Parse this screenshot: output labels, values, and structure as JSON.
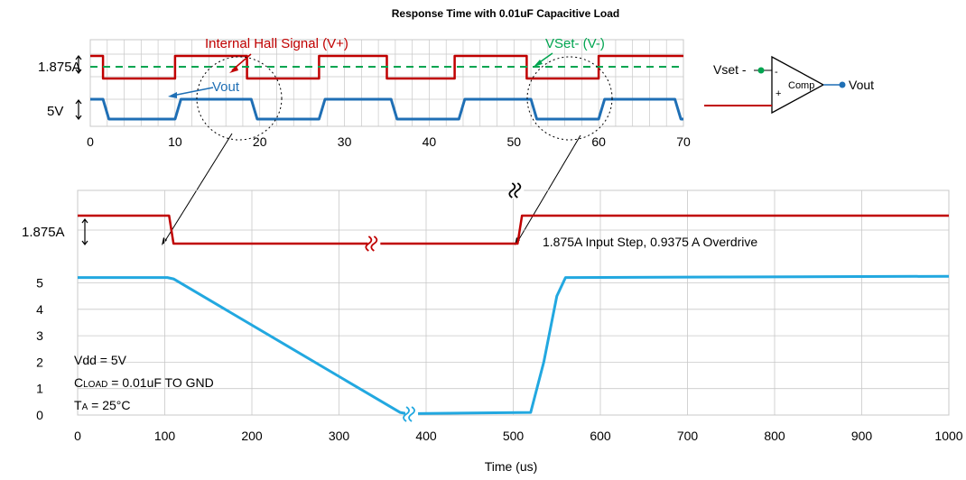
{
  "title": "Response  Time with 0.01uF Capacitive Load",
  "colors": {
    "hall": "#c00000",
    "vout_top": "#1f6fb5",
    "vout_bottom": "#22a8e0",
    "vset": "#00a550",
    "grid": "#c8c8c8"
  },
  "chart_data": [
    {
      "type": "line",
      "xlim": [
        0,
        70
      ],
      "x_ticks": [
        "0",
        "10",
        "20",
        "30",
        "40",
        "50",
        "60",
        "70"
      ],
      "y_tick_labels": [
        "1.875A",
        "5V"
      ],
      "grid": true,
      "series": [
        {
          "name": "Internal Hall Signal (V+)",
          "x": [
            0,
            1.5,
            1.5,
            10,
            10,
            18.5,
            18.5,
            27,
            27,
            35,
            35,
            43,
            43,
            51.5,
            51.5,
            60,
            60,
            70
          ],
          "y": [
            2.1,
            2.1,
            0.9,
            0.9,
            2.1,
            2.1,
            0.9,
            0.9,
            2.1,
            2.1,
            0.9,
            0.9,
            2.1,
            2.1,
            0.9,
            0.9,
            2.1,
            2.1
          ]
        },
        {
          "name": "Vout",
          "x": [
            0,
            1.5,
            2.2,
            10,
            10.7,
            19,
            19.7,
            27,
            27.7,
            35.5,
            36.2,
            43.5,
            44.2,
            52,
            52.7,
            60,
            60.7,
            69,
            69.7,
            70
          ],
          "y": [
            5,
            5,
            0,
            0,
            5,
            5,
            0,
            0,
            5,
            5,
            0,
            0,
            5,
            5,
            0,
            0,
            5,
            5,
            0,
            0
          ]
        },
        {
          "name": "VSet- (V-)",
          "x": [
            0,
            70
          ],
          "y": [
            1.5,
            1.5
          ]
        }
      ],
      "annotations": [
        "Internal Hall Signal (V+)",
        "VSet- (V-)",
        "Vout"
      ]
    },
    {
      "type": "line",
      "xlabel": "Time (us)",
      "xlim": [
        0,
        1000
      ],
      "ylim": [
        0,
        5.6
      ],
      "x_ticks": [
        "0",
        "100",
        "200",
        "300",
        "400",
        "500",
        "600",
        "700",
        "800",
        "900",
        "1000"
      ],
      "y_ticks": [
        "0",
        "1",
        "2",
        "3",
        "4",
        "5"
      ],
      "extra_y_label": "1.875A",
      "grid": true,
      "series": [
        {
          "name": "Internal Hall Signal (V+)",
          "x": [
            0,
            105,
            110,
            505,
            510,
            1000
          ],
          "y": [
            2.81,
            2.81,
            1.875,
            1.875,
            2.81,
            2.81
          ]
        },
        {
          "name": "Vout",
          "x": [
            0,
            103,
            110,
            370,
            378,
            520,
            535,
            550,
            560,
            1000
          ],
          "y": [
            5.2,
            5.2,
            5.15,
            0.1,
            0.05,
            0.1,
            2.0,
            4.5,
            5.2,
            5.25
          ]
        }
      ],
      "annotations": [
        "1.875A  Input Step, 0.9375 A Overdrive",
        "Vdd = 5V",
        "CLOAD = 0.01uF TO GND",
        "TA = 25°C"
      ]
    }
  ],
  "comparator": {
    "label": "Comp",
    "input_minus_label": "Vset -",
    "output_label": "Vout",
    "minus_sign": "-",
    "plus_sign": "+"
  },
  "notes": {
    "vdd": "Vdd = 5V",
    "cload_prefix": "C",
    "cload_sub": "LOAD",
    "cload_rest": " = 0.01uF TO GND",
    "ta_prefix": "T",
    "ta_sub": "A",
    "ta_rest": " = 25°C",
    "step": "1.875A  Input Step, 0.9375 A Overdrive"
  }
}
